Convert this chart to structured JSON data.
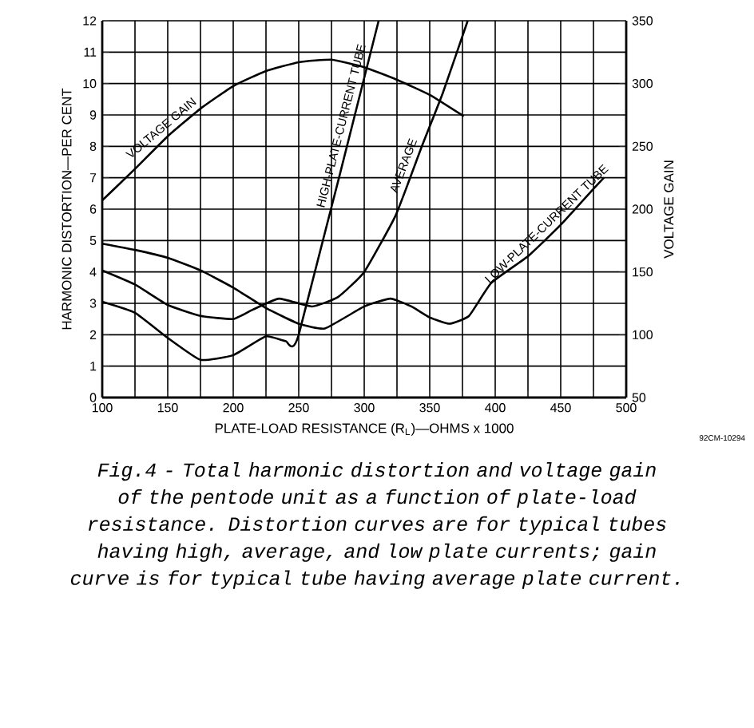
{
  "chart_data": {
    "type": "line",
    "xlabel": "PLATE-LOAD RESISTANCE (R$_{L}$)—OHMS x 1000",
    "ylabel": "HARMONIC DISTORTION—PER CENT",
    "y2label": "VOLTAGE GAIN",
    "xlim": [
      100,
      500
    ],
    "xticks": [
      100,
      {
        "value": 125,
        "label": null
      },
      150,
      {
        "value": 175,
        "label": null
      },
      200,
      {
        "value": 225,
        "label": null
      },
      250,
      {
        "value": 275,
        "label": null
      },
      300,
      {
        "value": 325,
        "label": null
      },
      350,
      {
        "value": 375,
        "label": null
      },
      400,
      {
        "value": 425,
        "label": null
      },
      450,
      {
        "value": 475,
        "label": null
      },
      500
    ],
    "ylim": [
      0,
      12
    ],
    "yticks": [
      0,
      1,
      2,
      3,
      4,
      5,
      6,
      7,
      8,
      9,
      10,
      11,
      12
    ],
    "y2lim": [
      50,
      350
    ],
    "y2ticks": [
      50,
      100,
      150,
      200,
      250,
      300,
      350
    ],
    "grid": true,
    "series": [
      {
        "name": "VOLTAGE GAIN",
        "color": "#000000",
        "axis": "y2",
        "x": [
          100,
          125,
          150,
          175,
          200,
          225,
          250,
          275,
          300,
          325,
          350,
          376
        ],
        "values": [
          207,
          232,
          258,
          280,
          298,
          310,
          317,
          319,
          313,
          303,
          291,
          274
        ]
      },
      {
        "name": "HIGH-PLATE-CURRENT TUBE",
        "color": "#000000",
        "x": [
          100,
          125,
          150,
          175,
          200,
          225,
          240,
          250,
          311
        ],
        "values": [
          3.05,
          2.7,
          1.9,
          1.2,
          1.35,
          1.95,
          1.8,
          2.0,
          12
        ]
      },
      {
        "name": "AVERAGE",
        "color": "#000000",
        "x": [
          100,
          125,
          150,
          175,
          200,
          215,
          235,
          260,
          280,
          300,
          324,
          344,
          360,
          379
        ],
        "values": [
          4.05,
          3.6,
          2.95,
          2.6,
          2.5,
          2.8,
          3.15,
          2.9,
          3.2,
          4.0,
          5.8,
          8.0,
          9.7,
          12
        ]
      },
      {
        "name": "LOW-PLATE-CURRENT TUBE",
        "color": "#000000",
        "x": [
          100,
          125,
          150,
          175,
          200,
          225,
          250,
          270,
          300,
          320,
          336,
          350,
          365,
          380,
          397,
          425,
          450,
          474,
          483
        ],
        "values": [
          4.9,
          4.7,
          4.45,
          4.05,
          3.5,
          2.85,
          2.35,
          2.2,
          2.9,
          3.15,
          2.9,
          2.55,
          2.35,
          2.6,
          3.65,
          4.5,
          5.5,
          6.6,
          7.0
        ]
      }
    ],
    "annotations": [
      "92CM-10294",
      "Fig.4 - Total harmonic distortion and voltage gain of the pentode unit as a function of plate-load resistance. Distortion curves are for typical tubes having high, average, and low plate currents; gain curve is for typical tube having average plate current."
    ]
  }
}
